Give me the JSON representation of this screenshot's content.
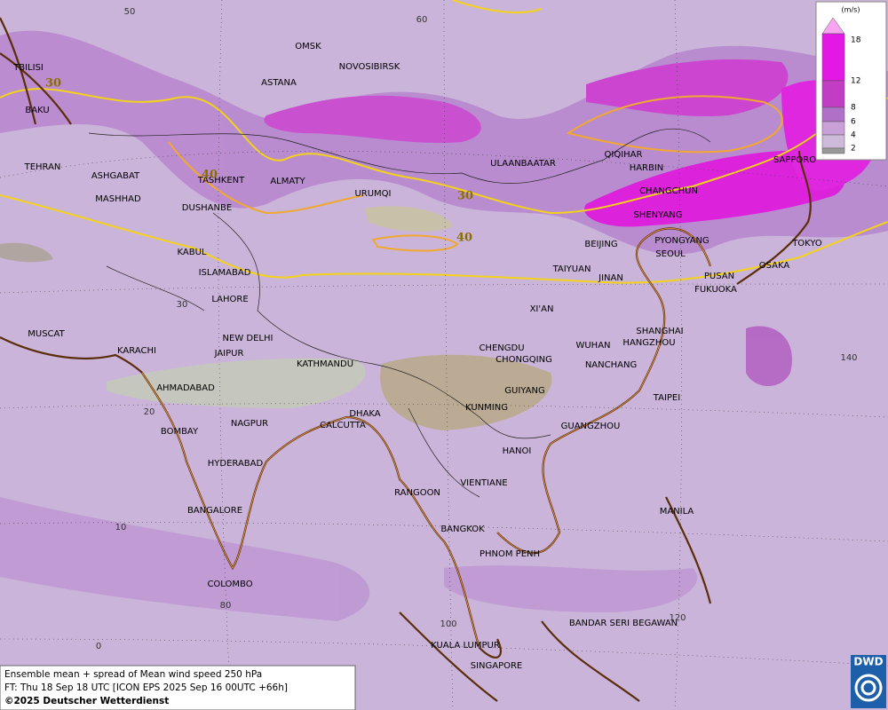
{
  "map": {
    "cities": [
      "OMSK",
      "NOVOSIBIRSK",
      "TBILISI",
      "ASTANA",
      "BAKU",
      "ULAANBAATAR",
      "QIQIHAR",
      "HARBIN",
      "SAPPORO",
      "TEHRAN",
      "ASHGABAT",
      "TASHKENT",
      "ALMATY",
      "MASHHAD",
      "URUMQI",
      "CHANGCHUN",
      "DUSHANBE",
      "SHENYANG",
      "PYONGYANG",
      "BEIJING",
      "TOKYO",
      "SEOUL",
      "KABUL",
      "TAIYUAN",
      "OSAKA",
      "ISLAMABAD",
      "JINAN",
      "PUSAN",
      "FUKUOKA",
      "LAHORE",
      "XI'AN",
      "MUSCAT",
      "SHANGHAI",
      "NEW DELHI",
      "WUHAN",
      "HANGZHOU",
      "CHENGDU",
      "KARACHI",
      "JAIPUR",
      "CHONGQING",
      "KATHMANDU",
      "NANCHANG",
      "AHMADABAD",
      "GUIYANG",
      "TAIPEI",
      "KUNMING",
      "DHAKA",
      "NAGPUR",
      "CALCUTTA",
      "GUANGZHOU",
      "BOMBAY",
      "HANOI",
      "HYDERABAD",
      "VIENTIANE",
      "RANGOON",
      "BANGALORE",
      "MANILA",
      "BANGKOK",
      "PHNOM PENH",
      "COLOMBO",
      "BANDAR SERI BEGAWAN",
      "KUALA LUMPUR",
      "SINGAPORE"
    ],
    "grid_labels": [
      50,
      60,
      30,
      20,
      10,
      0,
      80,
      100,
      120,
      140
    ],
    "contour_labels": [
      30,
      30,
      40,
      40
    ]
  },
  "legend": {
    "unit": "(m/s)",
    "levels": [
      18,
      12,
      8,
      6,
      4,
      2
    ]
  },
  "footer": {
    "line1": "Ensemble mean + spread of Mean wind speed 250 hPa",
    "line2": "FT: Thu 18 Sep 18 UTC [ICON EPS 2025 Sep 16 00UTC +66h]",
    "line3": "©2025 Deutscher Wetterdienst",
    "logo": "DWD"
  }
}
